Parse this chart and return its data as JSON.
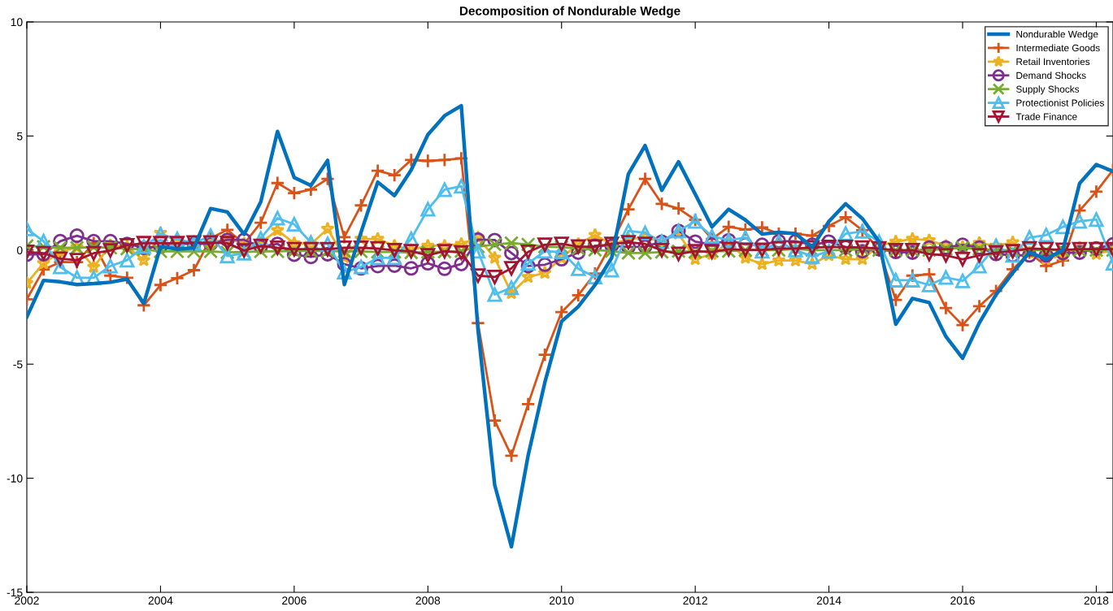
{
  "chart_data": {
    "type": "line",
    "title": "Decomposition of Nondurable Wedge",
    "x": [
      2002,
      2002.25,
      2002.5,
      2002.75,
      2003,
      2003.25,
      2003.5,
      2003.75,
      2004,
      2004.25,
      2004.5,
      2004.75,
      2005,
      2005.25,
      2005.5,
      2005.75,
      2006,
      2006.25,
      2006.5,
      2006.75,
      2007,
      2007.25,
      2007.5,
      2007.75,
      2008,
      2008.25,
      2008.5,
      2008.75,
      2009,
      2009.25,
      2009.5,
      2009.75,
      2010,
      2010.25,
      2010.5,
      2010.75,
      2011,
      2011.25,
      2011.5,
      2011.75,
      2012,
      2012.25,
      2012.5,
      2012.75,
      2013,
      2013.25,
      2013.5,
      2013.75,
      2014,
      2014.25,
      2014.5,
      2014.75,
      2015,
      2015.25,
      2015.5,
      2015.75,
      2016,
      2016.25,
      2016.5,
      2016.75,
      2017,
      2017.25,
      2017.5,
      2017.75,
      2018,
      2018.25
    ],
    "series": [
      {
        "name": "Nondurable Wedge",
        "color": "#0072bd",
        "marker": "none",
        "values": [
          -2.93,
          -1.33,
          -1.39,
          -1.51,
          -1.47,
          -1.41,
          -1.27,
          -2.34,
          0.15,
          0.04,
          0.1,
          1.82,
          1.67,
          0.69,
          2.11,
          5.2,
          3.18,
          2.83,
          3.93,
          -1.51,
          0.78,
          2.98,
          2.39,
          3.51,
          5.06,
          5.89,
          6.33,
          -3.5,
          -10.3,
          -13.0,
          -9.0,
          -5.8,
          -3.13,
          -2.48,
          -1.53,
          -0.34,
          3.34,
          4.58,
          2.62,
          3.87,
          2.45,
          1.02,
          1.79,
          1.32,
          0.7,
          0.78,
          0.72,
          0.13,
          1.26,
          2.03,
          1.38,
          0.37,
          -3.25,
          -2.12,
          -2.3,
          -3.79,
          -4.74,
          -3.19,
          -1.95,
          -1.0,
          -0.1,
          -0.4,
          0.0,
          2.92,
          3.75,
          3.45
        ]
      },
      {
        "name": "Intermediate Goods",
        "color": "#d95319",
        "marker": "plus",
        "values": [
          -2.16,
          -0.85,
          -0.53,
          -0.53,
          0.3,
          -1.12,
          -1.21,
          -2.42,
          -1.53,
          -1.23,
          -0.88,
          0.51,
          0.89,
          0.27,
          1.2,
          2.94,
          2.5,
          2.65,
          3.12,
          0.57,
          1.96,
          3.48,
          3.28,
          3.95,
          3.91,
          3.95,
          4.02,
          -3.2,
          -7.47,
          -9.01,
          -6.75,
          -4.59,
          -2.72,
          -1.98,
          -1.03,
          0.3,
          1.79,
          3.12,
          2.03,
          1.82,
          1.32,
          0.49,
          1.02,
          0.9,
          0.99,
          0.72,
          0.72,
          0.63,
          1.06,
          1.44,
          0.87,
          0.01,
          -2.18,
          -1.12,
          -1.06,
          -2.54,
          -3.29,
          -2.46,
          -1.79,
          -0.84,
          -0.11,
          -0.7,
          -0.46,
          1.73,
          2.56,
          3.51
        ]
      },
      {
        "name": "Retail Inventories",
        "color": "#edb120",
        "marker": "star",
        "values": [
          -1.45,
          -0.58,
          -0.08,
          0.13,
          -0.74,
          0.21,
          0.15,
          -0.44,
          0.75,
          0.39,
          0.27,
          0.33,
          0.51,
          0.27,
          0.33,
          0.87,
          0.3,
          0.27,
          0.93,
          -0.32,
          0.49,
          0.49,
          0.19,
          0.01,
          0.19,
          0.19,
          0.27,
          0.55,
          -0.34,
          -1.89,
          -1.18,
          -1.0,
          -0.34,
          0.27,
          0.66,
          0.25,
          0.49,
          0.55,
          0.37,
          0.72,
          -0.4,
          -0.17,
          0.31,
          -0.34,
          -0.61,
          -0.46,
          -0.46,
          -0.61,
          -0.23,
          -0.4,
          -0.4,
          0.19,
          0.37,
          0.49,
          0.43,
          0.19,
          0.13,
          0.31,
          0.19,
          0.34,
          -0.11,
          -0.4,
          -0.23,
          0.11,
          -0.17,
          0.0
        ]
      },
      {
        "name": "Demand Shocks",
        "color": "#7e2f8e",
        "marker": "circle",
        "values": [
          -0.2,
          -0.18,
          0.39,
          0.63,
          0.39,
          0.39,
          0.27,
          0.1,
          0.15,
          0.27,
          0.27,
          0.27,
          0.45,
          0.45,
          0.15,
          0.27,
          -0.2,
          -0.3,
          -0.18,
          -0.62,
          -0.8,
          -0.7,
          -0.68,
          -0.8,
          -0.58,
          -0.82,
          -0.61,
          0.46,
          0.44,
          -0.13,
          -0.7,
          -0.64,
          -0.4,
          -0.11,
          0.19,
          0.19,
          0.13,
          0.15,
          0.37,
          0.84,
          0.37,
          0.25,
          0.43,
          0.25,
          0.23,
          0.39,
          0.39,
          0.23,
          0.37,
          0.13,
          -0.05,
          0.04,
          -0.08,
          -0.11,
          0.11,
          0.11,
          0.23,
          0.11,
          -0.17,
          -0.23,
          -0.23,
          -0.23,
          -0.13,
          -0.11,
          0.07,
          0.25
        ]
      },
      {
        "name": "Supply Shocks",
        "color": "#77ac30",
        "marker": "cross",
        "values": [
          0.18,
          0.15,
          0.1,
          0.1,
          0.13,
          0.1,
          0.06,
          0.03,
          -0.06,
          -0.06,
          -0.06,
          -0.06,
          -0.1,
          -0.08,
          -0.06,
          -0.06,
          -0.04,
          -0.04,
          -0.04,
          -0.06,
          -0.06,
          -0.08,
          -0.08,
          -0.11,
          -0.08,
          -0.07,
          -0.05,
          0.15,
          0.25,
          0.31,
          0.25,
          0.15,
          0.13,
          0.07,
          0.01,
          -0.05,
          -0.13,
          -0.13,
          -0.08,
          -0.05,
          -0.08,
          -0.05,
          -0.05,
          0.0,
          0.0,
          0.0,
          0.05,
          0.0,
          0.0,
          0.0,
          0.05,
          0.0,
          0.0,
          0.0,
          0.0,
          0.05,
          0.1,
          0.05,
          0.0,
          0.0,
          0.0,
          0.0,
          0.0,
          0.0,
          0.0,
          0.0
        ]
      },
      {
        "name": "Protectionist Policies",
        "color": "#4dbeee",
        "marker": "triangle",
        "values": [
          0.93,
          0.39,
          -0.74,
          -1.21,
          -1.21,
          -0.7,
          -0.44,
          0.15,
          0.69,
          0.49,
          0.3,
          0.63,
          -0.26,
          -0.14,
          0.51,
          1.4,
          1.13,
          0.33,
          0.27,
          -0.97,
          -0.74,
          -0.34,
          -0.34,
          0.49,
          1.79,
          2.65,
          2.8,
          -0.05,
          -1.95,
          -1.65,
          -0.58,
          -0.05,
          -0.08,
          -0.82,
          -1.18,
          -0.88,
          0.84,
          0.75,
          0.37,
          0.84,
          1.26,
          0.61,
          0.43,
          0.55,
          -0.05,
          0.37,
          0.0,
          -0.28,
          -0.05,
          0.72,
          0.82,
          0.37,
          -1.32,
          -1.32,
          -1.53,
          -1.2,
          -1.35,
          -0.7,
          0.19,
          -0.23,
          0.55,
          0.66,
          1.02,
          1.26,
          1.34,
          -0.58
        ]
      },
      {
        "name": "Trade Finance",
        "color": "#a2142f",
        "marker": "triangle-down",
        "values": [
          -0.08,
          -0.14,
          -0.38,
          -0.44,
          -0.14,
          -0.02,
          0.21,
          0.3,
          0.3,
          0.3,
          0.33,
          0.33,
          0.3,
          -0.02,
          0.18,
          0.1,
          0.04,
          0.04,
          0.04,
          0.1,
          0.1,
          0.07,
          -0.01,
          -0.05,
          -0.23,
          -0.05,
          -0.11,
          -1.12,
          -1.18,
          -0.8,
          -0.08,
          0.23,
          0.27,
          0.15,
          0.15,
          0.27,
          0.34,
          0.27,
          -0.01,
          -0.17,
          -0.05,
          -0.08,
          0.04,
          0.01,
          0.01,
          0.07,
          0.07,
          0.11,
          0.13,
          0.13,
          0.11,
          0.07,
          -0.01,
          -0.01,
          -0.17,
          -0.23,
          -0.4,
          -0.23,
          -0.11,
          -0.05,
          0.07,
          0.04,
          0.01,
          0.04,
          0.04,
          0.04
        ]
      }
    ],
    "xlim": [
      2002,
      2018.25
    ],
    "xticks": [
      2002,
      2004,
      2006,
      2008,
      2010,
      2012,
      2014,
      2016,
      2018
    ],
    "ylim": [
      -15,
      10
    ],
    "yticks": [
      -15,
      -10,
      -5,
      0,
      5,
      10
    ],
    "grid": false,
    "legend": "top right"
  }
}
